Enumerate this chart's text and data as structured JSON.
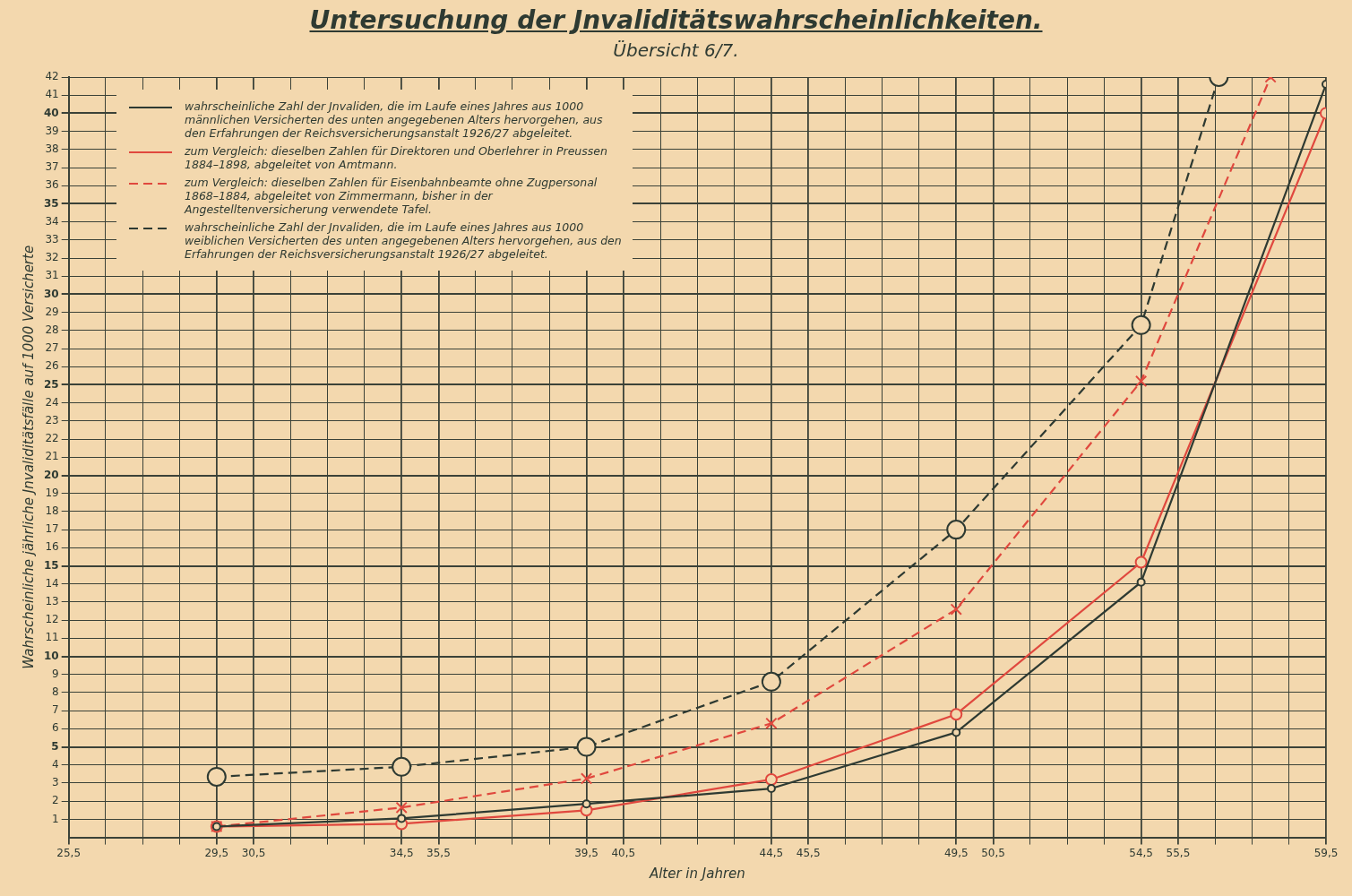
{
  "chart_data": {
    "type": "line",
    "title": "Untersuchung der Jnvaliditätswahrscheinlichkeiten.",
    "subtitle": "Übersicht 6/7.",
    "xlabel": "Alter in Jahren",
    "ylabel": "Wahrscheinliche jährliche Jnvaliditätsfälle auf 1000 Versicherte",
    "x": [
      29.5,
      34.5,
      39.5,
      44.5,
      49.5,
      54.5,
      59.5
    ],
    "series": [
      {
        "name": "wahrscheinliche Zahl der Jnvaliden, die im Laufe eines Jahres aus 1000 männlichen Versicherten des unten angegebenen Alters hervorgehen, aus den Erfahrungen der Reichsversicherungsanstalt 1926/27 abgeleitet.",
        "color": "#2e3a32",
        "values": [
          0.6,
          1.05,
          1.85,
          2.7,
          5.8,
          14.1,
          41.6
        ],
        "marker": "circle",
        "line_style": "solid"
      },
      {
        "name": "zum Vergleich: dieselben Zahlen für Direktoren und Oberlehrer in Preussen 1884–1898, abgeleitet von Amtmann.",
        "color": "#e0483e",
        "values": [
          0.6,
          0.75,
          1.5,
          3.2,
          6.8,
          15.2,
          40.0
        ],
        "marker": "circle",
        "line_style": "solid"
      },
      {
        "name": "zum Vergleich: dieselben Zahlen für Eisenbahnbeamte ohne Zugpersonal 1868–1884, abgeleitet von Zimmermann, bisher in der Angestelltenversicherung verwendete Tafel.",
        "color": "#e0483e",
        "x": [
          29.5,
          34.5,
          39.5,
          44.5,
          49.5,
          54.5,
          58.0
        ],
        "values": [
          0.6,
          1.65,
          3.25,
          6.3,
          12.6,
          25.2,
          42
        ],
        "marker": "cross",
        "line_style": "dashed"
      },
      {
        "name": "wahrscheinliche Zahl der Jnvaliden, die im Laufe eines Jahres aus 1000 weiblichen Versicherten des unten angegebenen Alters hervorgehen, aus den Erfahrungen der Reichsversicherungsanstalt 1926/27 abgeleitet.",
        "color": "#2e3a32",
        "x": [
          29.5,
          34.5,
          39.5,
          44.5,
          49.5,
          54.5,
          56.6
        ],
        "values": [
          3.35,
          3.9,
          5.0,
          8.6,
          17.0,
          28.3,
          42
        ],
        "marker": "circle",
        "line_style": "dashed"
      }
    ],
    "xlim": [
      25.5,
      59.5
    ],
    "xticks": [
      {
        "value": 25.5,
        "label": "25,5"
      },
      {
        "value": 26.5,
        "label": null
      },
      {
        "value": 27.5,
        "label": null
      },
      {
        "value": 28.5,
        "label": null
      },
      {
        "value": 29.5,
        "label": "29,5"
      },
      {
        "value": 30.5,
        "label": "30,5"
      },
      {
        "value": 31.5,
        "label": null
      },
      {
        "value": 32.5,
        "label": null
      },
      {
        "value": 33.5,
        "label": null
      },
      {
        "value": 34.5,
        "label": "34,5"
      },
      {
        "value": 35.5,
        "label": "35,5"
      },
      {
        "value": 36.5,
        "label": null
      },
      {
        "value": 37.5,
        "label": null
      },
      {
        "value": 38.5,
        "label": null
      },
      {
        "value": 39.5,
        "label": "39,5"
      },
      {
        "value": 40.5,
        "label": "40,5"
      },
      {
        "value": 41.5,
        "label": null
      },
      {
        "value": 42.5,
        "label": null
      },
      {
        "value": 43.5,
        "label": null
      },
      {
        "value": 44.5,
        "label": "44,5"
      },
      {
        "value": 45.5,
        "label": "45,5"
      },
      {
        "value": 46.5,
        "label": null
      },
      {
        "value": 47.5,
        "label": null
      },
      {
        "value": 48.5,
        "label": null
      },
      {
        "value": 49.5,
        "label": "49,5"
      },
      {
        "value": 50.5,
        "label": "50,5"
      },
      {
        "value": 51.5,
        "label": null
      },
      {
        "value": 52.5,
        "label": null
      },
      {
        "value": 53.5,
        "label": null
      },
      {
        "value": 54.5,
        "label": "54,5"
      },
      {
        "value": 55.5,
        "label": "55,5"
      },
      {
        "value": 56.5,
        "label": null
      },
      {
        "value": 57.5,
        "label": null
      },
      {
        "value": 58.5,
        "label": null
      },
      {
        "value": 59.5,
        "label": "59,5"
      }
    ],
    "ylim": [
      0,
      42
    ],
    "yticks": [
      1,
      2,
      3,
      4,
      5,
      6,
      7,
      8,
      9,
      10,
      11,
      12,
      13,
      14,
      15,
      16,
      17,
      18,
      19,
      20,
      21,
      22,
      23,
      24,
      25,
      26,
      27,
      28,
      29,
      30,
      31,
      32,
      33,
      34,
      35,
      36,
      37,
      38,
      39,
      40,
      41,
      42
    ],
    "grid": true,
    "legend": "top left"
  }
}
